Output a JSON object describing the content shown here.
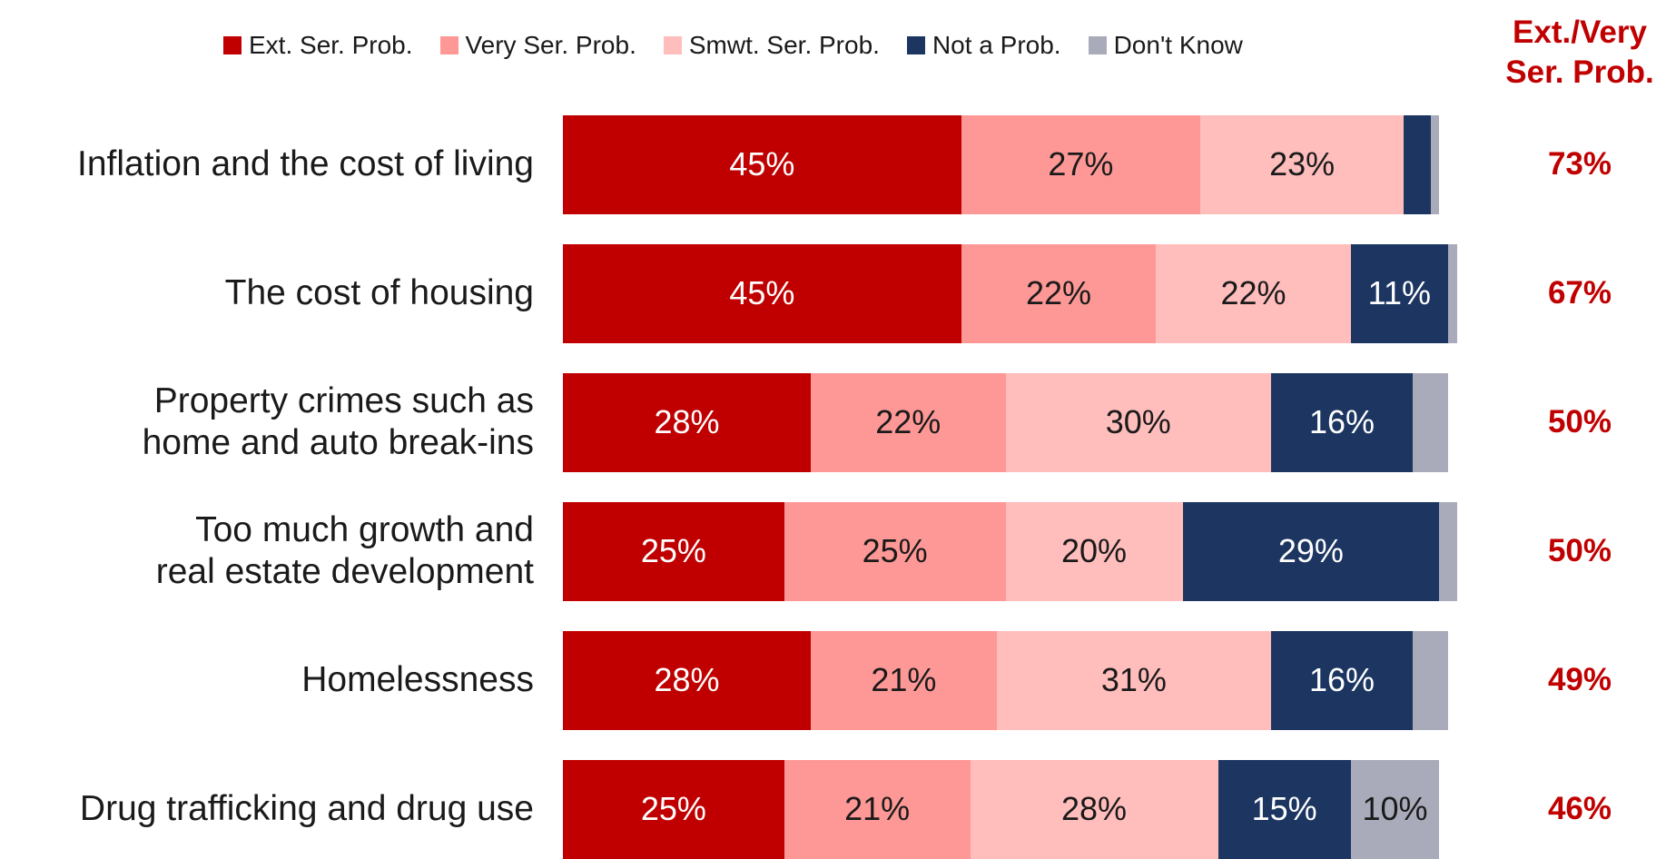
{
  "chart_data": {
    "type": "stacked_barh",
    "categories": [
      "Inflation and the cost of living",
      "The cost of housing",
      "Property crimes such as\nhome and auto break-ins",
      "Too much growth and\nreal estate development",
      "Homelessness",
      "Drug trafficking and drug use"
    ],
    "xlim": [
      0,
      100
    ],
    "legend": "top",
    "series": [
      {
        "name": "Ext. Ser. Prob.",
        "color": "#c00000",
        "label_color": "#ffffff",
        "values": [
          45,
          45,
          28,
          25,
          28,
          25
        ],
        "value_labels": [
          "45%",
          "45%",
          "28%",
          "25%",
          "28%",
          "25%"
        ]
      },
      {
        "name": "Very Ser. Prob.",
        "color": "#fe9896",
        "label_color": "#1a1a1a",
        "values": [
          27,
          22,
          22,
          25,
          21,
          21
        ],
        "value_labels": [
          "27%",
          "22%",
          "22%",
          "25%",
          "21%",
          "21%"
        ]
      },
      {
        "name": "Smwt. Ser. Prob.",
        "color": "#ffbdbc",
        "label_color": "#1a1a1a",
        "values": [
          23,
          22,
          30,
          20,
          31,
          28
        ],
        "value_labels": [
          "23%",
          "22%",
          "30%",
          "20%",
          "31%",
          "28%"
        ]
      },
      {
        "name": "Not a Prob.",
        "color": "#1c3661",
        "label_color": "#ffffff",
        "values": [
          3,
          11,
          16,
          29,
          16,
          15
        ],
        "value_labels": [
          null,
          "11%",
          "16%",
          "29%",
          "16%",
          "15%"
        ]
      },
      {
        "name": "Don't Know",
        "color": "#a9abba",
        "label_color": "#1a1a1a",
        "values": [
          1,
          1,
          4,
          2,
          4,
          10
        ],
        "value_labels": [
          null,
          null,
          null,
          null,
          null,
          "10%"
        ]
      }
    ],
    "totals": {
      "title": "Ext./Very\nSer. Prob.",
      "color": "#c00000",
      "values": [
        73,
        67,
        50,
        50,
        49,
        46
      ],
      "value_labels": [
        "73%",
        "67%",
        "50%",
        "50%",
        "49%",
        "46%"
      ]
    }
  }
}
